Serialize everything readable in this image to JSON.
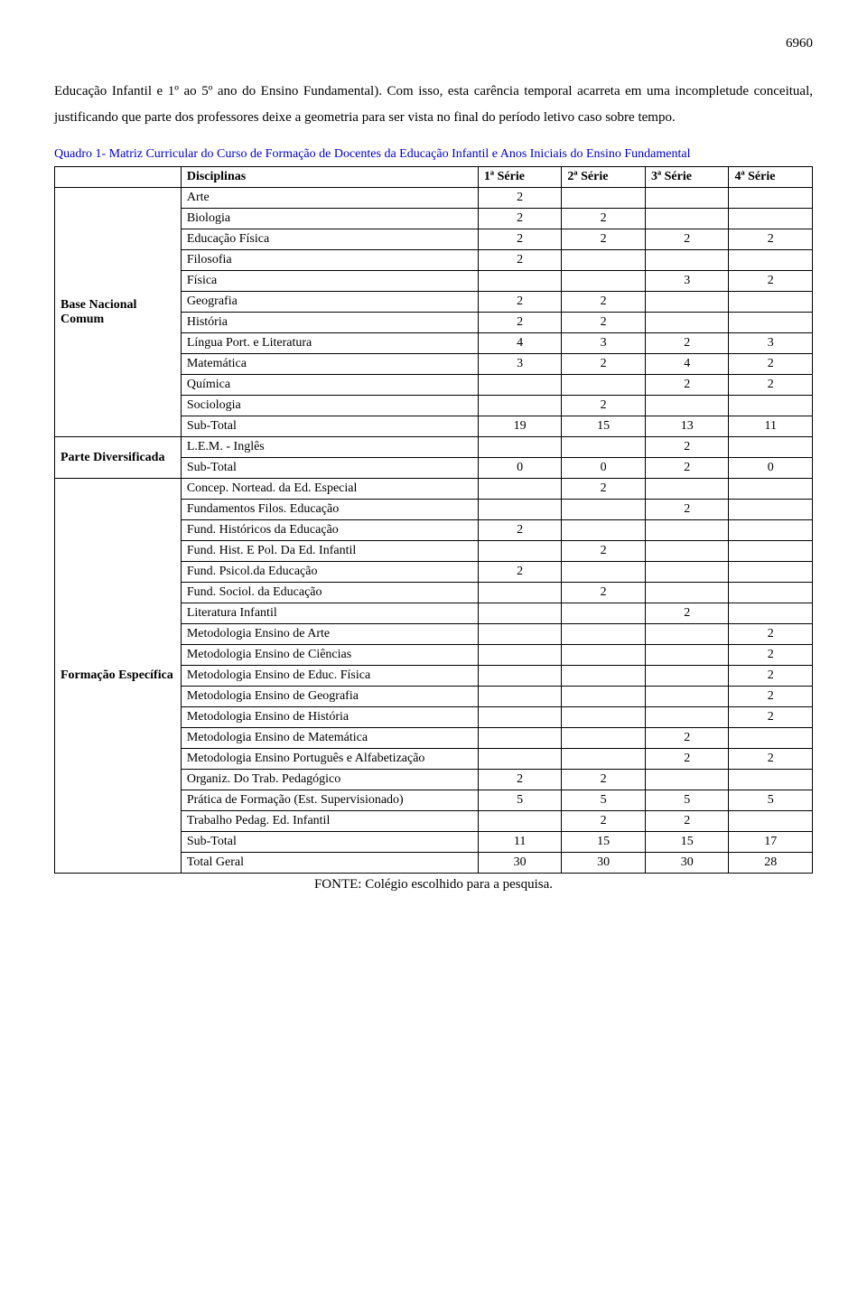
{
  "page_number": "6960",
  "intro": "Educação Infantil e 1º ao 5º ano do Ensino Fundamental). Com isso, esta carência temporal acarreta em uma incompletude conceitual, justificando que parte dos professores deixe a geometria para ser vista no final do período letivo caso sobre tempo.",
  "caption": "Quadro 1- Matriz Curricular do Curso de Formação de Docentes da Educação Infantil e Anos Iniciais do Ensino Fundamental",
  "headers": {
    "disc": "Disciplinas",
    "s1": "1ª Série",
    "s2": "2ª Série",
    "s3": "3ª Série",
    "s4": "4ª Série"
  },
  "sections": {
    "base": {
      "label": "Base Nacional Comum",
      "rows": [
        {
          "name": "Arte",
          "v": [
            "2",
            "",
            "",
            ""
          ]
        },
        {
          "name": "Biologia",
          "v": [
            "2",
            "2",
            "",
            ""
          ]
        },
        {
          "name": "Educação Física",
          "v": [
            "2",
            "2",
            "2",
            "2"
          ]
        },
        {
          "name": "Filosofia",
          "v": [
            "2",
            "",
            "",
            ""
          ]
        },
        {
          "name": "Física",
          "v": [
            "",
            "",
            "3",
            "2"
          ]
        },
        {
          "name": "Geografia",
          "v": [
            "2",
            "2",
            "",
            ""
          ]
        },
        {
          "name": "História",
          "v": [
            "2",
            "2",
            "",
            ""
          ]
        },
        {
          "name": "Língua Port. e Literatura",
          "v": [
            "4",
            "3",
            "2",
            "3"
          ]
        },
        {
          "name": "Matemática",
          "v": [
            "3",
            "2",
            "4",
            "2"
          ]
        },
        {
          "name": "Química",
          "v": [
            "",
            "",
            "2",
            "2"
          ]
        },
        {
          "name": "Sociologia",
          "v": [
            "",
            "2",
            "",
            ""
          ]
        },
        {
          "name": "Sub-Total",
          "v": [
            "19",
            "15",
            "13",
            "11"
          ]
        }
      ]
    },
    "diversificada": {
      "label": "Parte Diversificada",
      "rows": [
        {
          "name": "L.E.M. - Inglês",
          "v": [
            "",
            "",
            "2",
            ""
          ]
        },
        {
          "name": "Sub-Total",
          "v": [
            "0",
            "0",
            "2",
            "0"
          ]
        }
      ]
    },
    "especifica": {
      "label": "Formação Específica",
      "rows": [
        {
          "name": "Concep. Nortead. da Ed. Especial",
          "v": [
            "",
            "2",
            "",
            ""
          ]
        },
        {
          "name": "Fundamentos Filos. Educação",
          "v": [
            "",
            "",
            "2",
            ""
          ]
        },
        {
          "name": "Fund. Históricos da Educação",
          "v": [
            "2",
            "",
            "",
            ""
          ]
        },
        {
          "name": "Fund. Hist. E Pol. Da Ed. Infantil",
          "v": [
            "",
            "2",
            "",
            ""
          ]
        },
        {
          "name": "Fund. Psicol.da Educação",
          "v": [
            "2",
            "",
            "",
            ""
          ]
        },
        {
          "name": "Fund. Sociol. da Educação",
          "v": [
            "",
            "2",
            "",
            ""
          ]
        },
        {
          "name": "Literatura Infantil",
          "v": [
            "",
            "",
            "2",
            ""
          ]
        },
        {
          "name": "Metodologia Ensino de Arte",
          "v": [
            "",
            "",
            "",
            "2"
          ]
        },
        {
          "name": "Metodologia Ensino de Ciências",
          "v": [
            "",
            "",
            "",
            "2"
          ]
        },
        {
          "name": "Metodologia Ensino de Educ. Física",
          "v": [
            "",
            "",
            "",
            "2"
          ]
        },
        {
          "name": "Metodologia Ensino de Geografia",
          "v": [
            "",
            "",
            "",
            "2"
          ]
        },
        {
          "name": "Metodologia Ensino de História",
          "v": [
            "",
            "",
            "",
            "2"
          ]
        },
        {
          "name": "Metodologia Ensino de Matemática",
          "v": [
            "",
            "",
            "2",
            ""
          ]
        },
        {
          "name": "Metodologia Ensino Português e Alfabetização",
          "v": [
            "",
            "",
            "2",
            "2"
          ]
        },
        {
          "name": "Organiz. Do Trab. Pedagógico",
          "v": [
            "2",
            "2",
            "",
            ""
          ]
        },
        {
          "name": "Prática de Formação (Est. Supervisionado)",
          "v": [
            "5",
            "5",
            "5",
            "5"
          ]
        },
        {
          "name": "Trabalho Pedag. Ed. Infantil",
          "v": [
            "",
            "2",
            "2",
            ""
          ]
        },
        {
          "name": "Sub-Total",
          "v": [
            "11",
            "15",
            "15",
            "17"
          ]
        },
        {
          "name": "Total Geral",
          "v": [
            "30",
            "30",
            "30",
            "28"
          ]
        }
      ]
    }
  },
  "footer": "FONTE: Colégio escolhido para a pesquisa."
}
